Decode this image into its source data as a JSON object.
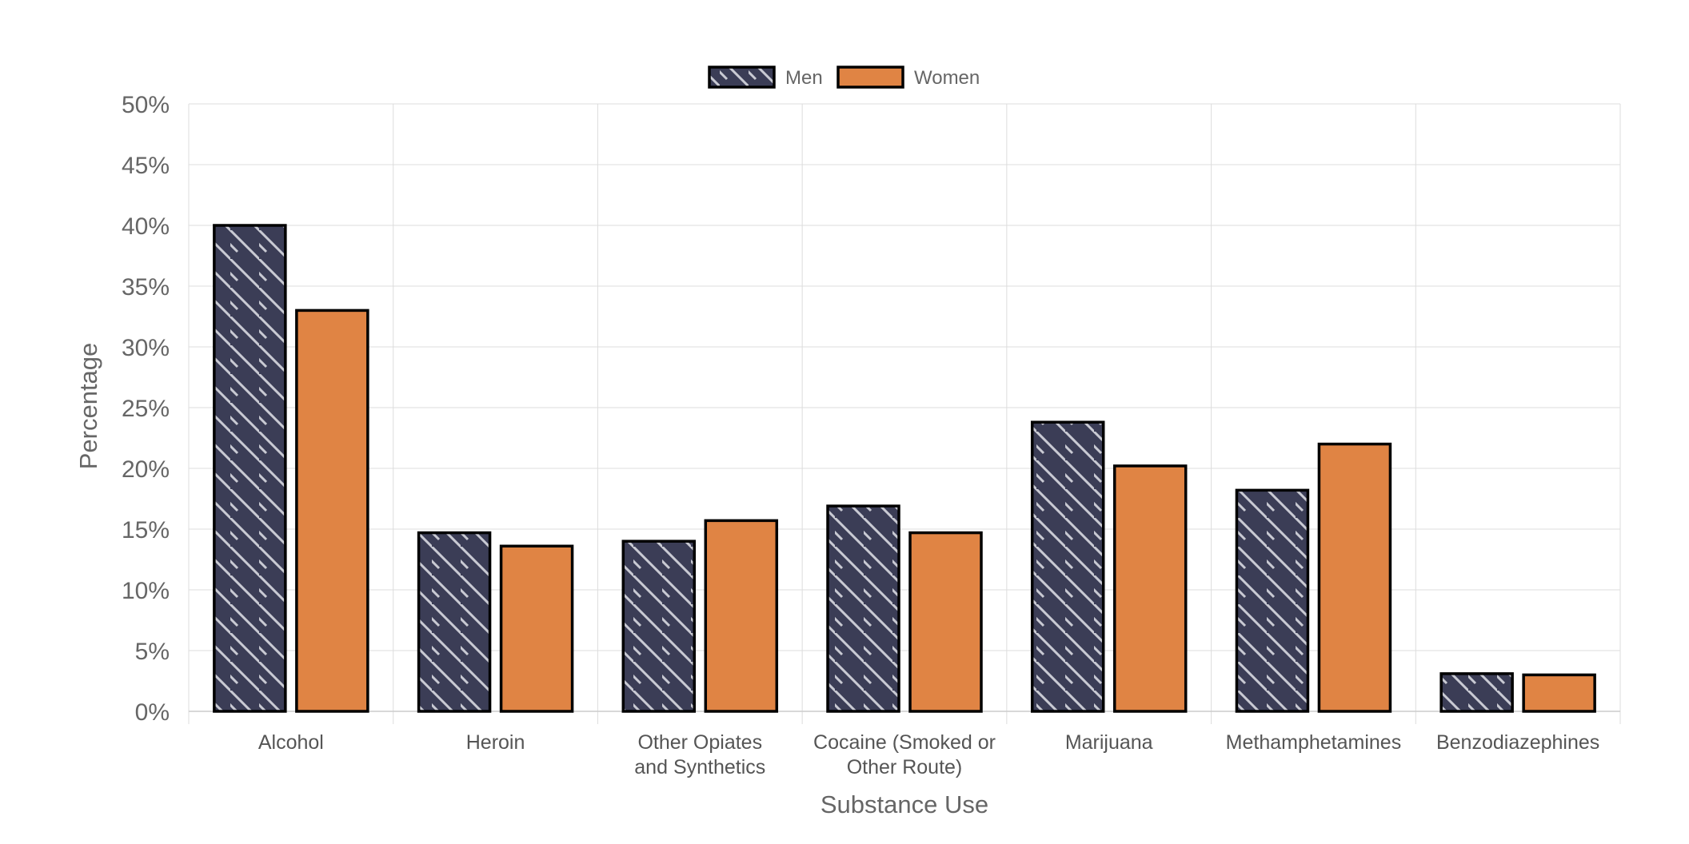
{
  "chart_data": {
    "type": "bar",
    "categories": [
      [
        "Alcohol"
      ],
      [
        "Heroin"
      ],
      [
        "Other Opiates",
        "and Synthetics"
      ],
      [
        "Cocaine (Smoked or",
        "Other Route)"
      ],
      [
        "Marijuana"
      ],
      [
        "Methamphetamines"
      ],
      [
        "Benzodiazephines"
      ]
    ],
    "series": [
      {
        "name": "Men",
        "values": [
          40,
          14.7,
          14,
          16.9,
          23.8,
          18.2,
          3.1
        ],
        "color": "#3b3d56",
        "pattern": "diagonal-stripes"
      },
      {
        "name": "Women",
        "values": [
          33,
          13.6,
          15.7,
          14.7,
          20.2,
          22,
          3
        ],
        "color": "#e08444"
      }
    ],
    "xlabel": "Substance Use",
    "ylabel": "Percentage",
    "ylim": [
      0,
      50
    ],
    "yticks": [
      "0%",
      "5%",
      "10%",
      "15%",
      "20%",
      "25%",
      "30%",
      "35%",
      "40%",
      "45%",
      "50%"
    ],
    "grid": true,
    "legend_position": "top-center"
  }
}
